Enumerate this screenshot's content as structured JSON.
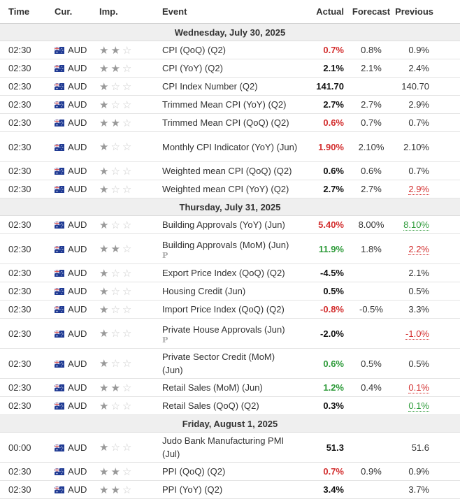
{
  "headers": {
    "time": "Time",
    "cur": "Cur.",
    "imp": "Imp.",
    "event": "Event",
    "actual": "Actual",
    "forecast": "Forecast",
    "previous": "Previous"
  },
  "days": [
    {
      "label": "Wednesday, July 30, 2025",
      "rows": [
        {
          "time": "02:30",
          "cur": "AUD",
          "stars": 2,
          "event": "CPI (QoQ) (Q2)",
          "actual": "0.7%",
          "ac": "red",
          "forecast": "0.8%",
          "previous": "0.9%",
          "pc": ""
        },
        {
          "time": "02:30",
          "cur": "AUD",
          "stars": 2,
          "event": "CPI (YoY) (Q2)",
          "actual": "2.1%",
          "ac": "black",
          "forecast": "2.1%",
          "previous": "2.4%",
          "pc": ""
        },
        {
          "time": "02:30",
          "cur": "AUD",
          "stars": 1,
          "event": "CPI Index Number (Q2)",
          "actual": "141.70",
          "ac": "black",
          "forecast": "",
          "previous": "140.70",
          "pc": ""
        },
        {
          "time": "02:30",
          "cur": "AUD",
          "stars": 1,
          "event": "Trimmed Mean CPI (YoY) (Q2)",
          "actual": "2.7%",
          "ac": "black",
          "forecast": "2.7%",
          "previous": "2.9%",
          "pc": ""
        },
        {
          "time": "02:30",
          "cur": "AUD",
          "stars": 2,
          "event": "Trimmed Mean CPI (QoQ) (Q2)",
          "actual": "0.6%",
          "ac": "red",
          "forecast": "0.7%",
          "previous": "0.7%",
          "pc": ""
        },
        {
          "time": "02:30",
          "cur": "AUD",
          "stars": 1,
          "event": "Monthly CPI Indicator (YoY) (Jun)",
          "actual": "1.90%",
          "ac": "red",
          "forecast": "2.10%",
          "previous": "2.10%",
          "pc": "",
          "tall": true
        },
        {
          "time": "02:30",
          "cur": "AUD",
          "stars": 1,
          "event": "Weighted mean CPI (QoQ) (Q2)",
          "actual": "0.6%",
          "ac": "black",
          "forecast": "0.6%",
          "previous": "0.7%",
          "pc": ""
        },
        {
          "time": "02:30",
          "cur": "AUD",
          "stars": 1,
          "event": "Weighted mean CPI (YoY) (Q2)",
          "actual": "2.7%",
          "ac": "black",
          "forecast": "2.7%",
          "previous": "2.9%",
          "pc": "red"
        }
      ]
    },
    {
      "label": "Thursday, July 31, 2025",
      "rows": [
        {
          "time": "02:30",
          "cur": "AUD",
          "stars": 1,
          "event": "Building Approvals (YoY) (Jun)",
          "actual": "5.40%",
          "ac": "red",
          "forecast": "8.00%",
          "previous": "8.10%",
          "pc": "green"
        },
        {
          "time": "02:30",
          "cur": "AUD",
          "stars": 2,
          "event": "Building Approvals (MoM) (Jun)",
          "actual": "11.9%",
          "ac": "green",
          "forecast": "1.8%",
          "previous": "2.2%",
          "pc": "red",
          "tall": true,
          "badge": "P"
        },
        {
          "time": "02:30",
          "cur": "AUD",
          "stars": 1,
          "event": "Export Price Index (QoQ) (Q2)",
          "actual": "-4.5%",
          "ac": "black",
          "forecast": "",
          "previous": "2.1%",
          "pc": ""
        },
        {
          "time": "02:30",
          "cur": "AUD",
          "stars": 1,
          "event": "Housing Credit (Jun)",
          "actual": "0.5%",
          "ac": "black",
          "forecast": "",
          "previous": "0.5%",
          "pc": ""
        },
        {
          "time": "02:30",
          "cur": "AUD",
          "stars": 1,
          "event": "Import Price Index (QoQ) (Q2)",
          "actual": "-0.8%",
          "ac": "red",
          "forecast": "-0.5%",
          "previous": "3.3%",
          "pc": ""
        },
        {
          "time": "02:30",
          "cur": "AUD",
          "stars": 1,
          "event": "Private House Approvals (Jun)",
          "actual": "-2.0%",
          "ac": "black",
          "forecast": "",
          "previous": "-1.0%",
          "pc": "red",
          "tall": true,
          "badge": "P"
        },
        {
          "time": "02:30",
          "cur": "AUD",
          "stars": 1,
          "event": "Private Sector Credit (MoM) (Jun)",
          "actual": "0.6%",
          "ac": "green",
          "forecast": "0.5%",
          "previous": "0.5%",
          "pc": "",
          "tall": true
        },
        {
          "time": "02:30",
          "cur": "AUD",
          "stars": 2,
          "event": "Retail Sales (MoM) (Jun)",
          "actual": "1.2%",
          "ac": "green",
          "forecast": "0.4%",
          "previous": "0.1%",
          "pc": "red"
        },
        {
          "time": "02:30",
          "cur": "AUD",
          "stars": 1,
          "event": "Retail Sales (QoQ) (Q2)",
          "actual": "0.3%",
          "ac": "black",
          "forecast": "",
          "previous": "0.1%",
          "pc": "green"
        }
      ]
    },
    {
      "label": "Friday, August 1, 2025",
      "rows": [
        {
          "time": "00:00",
          "cur": "AUD",
          "stars": 1,
          "event": "Judo Bank Manufacturing PMI (Jul)",
          "actual": "51.3",
          "ac": "black",
          "forecast": "",
          "previous": "51.6",
          "pc": "",
          "tall": true
        },
        {
          "time": "02:30",
          "cur": "AUD",
          "stars": 2,
          "event": "PPI (QoQ) (Q2)",
          "actual": "0.7%",
          "ac": "red",
          "forecast": "0.9%",
          "previous": "0.9%",
          "pc": ""
        },
        {
          "time": "02:30",
          "cur": "AUD",
          "stars": 2,
          "event": "PPI (YoY) (Q2)",
          "actual": "3.4%",
          "ac": "black",
          "forecast": "",
          "previous": "3.7%",
          "pc": ""
        }
      ]
    }
  ]
}
